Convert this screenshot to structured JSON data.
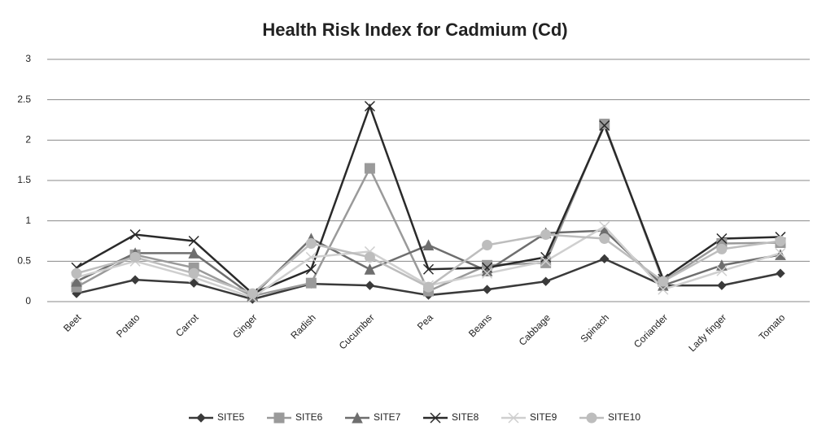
{
  "chart_data": {
    "type": "line",
    "title": "Health Risk Index for Cadmium (Cd)",
    "categories": [
      "Beet",
      "Potato",
      "Carrot",
      "Ginger",
      "Radish",
      "Cucumber",
      "Pea",
      "Beans",
      "Cabbage",
      "Spinach",
      "Coriander",
      "Lady finger",
      "Tomato"
    ],
    "ylim": [
      0,
      3
    ],
    "yticks": [
      0,
      0.5,
      1,
      1.5,
      2,
      2.5,
      3
    ],
    "grid": true,
    "legend": "bottom",
    "series": [
      {
        "name": "SITE5",
        "color": "#3a3a3a",
        "marker": "diamond",
        "values": [
          0.1,
          0.27,
          0.23,
          0.03,
          0.22,
          0.2,
          0.08,
          0.15,
          0.25,
          0.53,
          0.2,
          0.2,
          0.35
        ]
      },
      {
        "name": "SITE6",
        "color": "#9a9a9a",
        "marker": "square",
        "values": [
          0.18,
          0.58,
          0.42,
          0.07,
          0.23,
          1.65,
          0.13,
          0.45,
          0.48,
          2.2,
          0.25,
          0.72,
          0.73
        ]
      },
      {
        "name": "SITE7",
        "color": "#6e6e6e",
        "marker": "triangle",
        "values": [
          0.25,
          0.6,
          0.6,
          0.07,
          0.78,
          0.4,
          0.7,
          0.38,
          0.85,
          0.88,
          0.2,
          0.45,
          0.58
        ]
      },
      {
        "name": "SITE8",
        "color": "#2a2a2a",
        "marker": "x",
        "values": [
          0.42,
          0.83,
          0.75,
          0.1,
          0.4,
          2.42,
          0.4,
          0.42,
          0.55,
          2.18,
          0.28,
          0.78,
          0.8
        ]
      },
      {
        "name": "SITE9",
        "color": "#cfcfcf",
        "marker": "x",
        "values": [
          0.3,
          0.5,
          0.3,
          0.05,
          0.55,
          0.62,
          0.2,
          0.35,
          0.5,
          0.93,
          0.15,
          0.38,
          0.6
        ]
      },
      {
        "name": "SITE10",
        "color": "#bdbdbd",
        "marker": "circle",
        "values": [
          0.35,
          0.55,
          0.35,
          0.1,
          0.72,
          0.55,
          0.18,
          0.7,
          0.83,
          0.78,
          0.25,
          0.65,
          0.75
        ]
      }
    ]
  }
}
